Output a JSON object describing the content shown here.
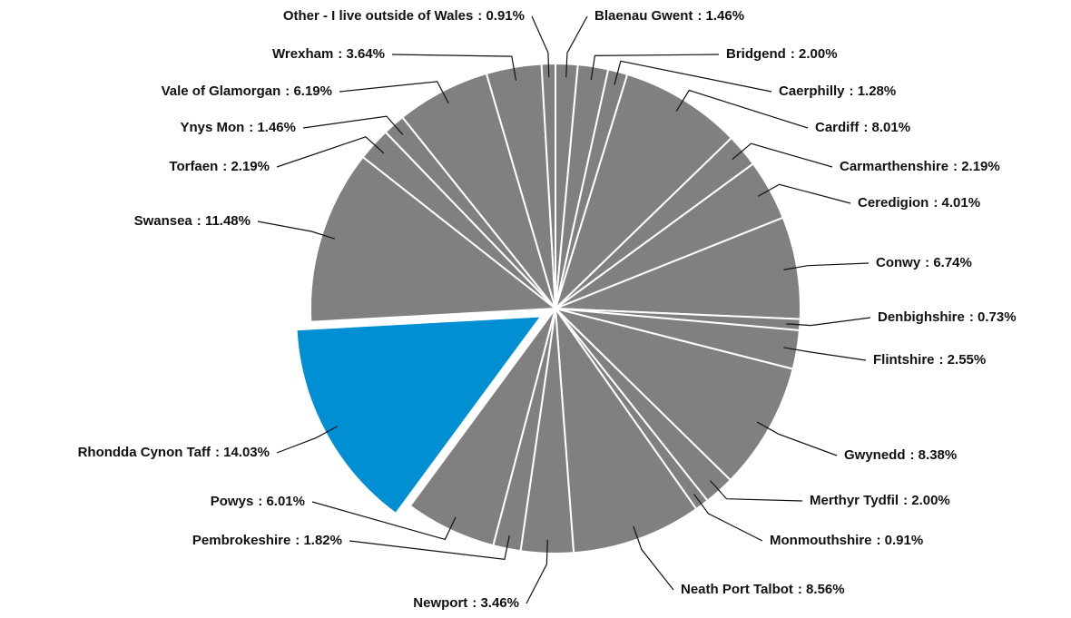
{
  "chart_data": {
    "type": "pie",
    "categories": [
      "Blaenau Gwent",
      "Bridgend",
      "Caerphilly",
      "Cardiff",
      "Carmarthenshire",
      "Ceredigion",
      "Conwy",
      "Denbighshire",
      "Flintshire",
      "Gwynedd",
      "Merthyr Tydfil",
      "Monmouthshire",
      "Neath Port Talbot",
      "Newport",
      "Pembrokeshire",
      "Powys",
      "Rhondda Cynon Taff",
      "Swansea",
      "Torfaen",
      "Ynys Mon",
      "Vale of Glamorgan",
      "Wrexham",
      "Other - I live outside of Wales"
    ],
    "values": [
      1.46,
      2.0,
      1.28,
      8.01,
      2.19,
      4.01,
      6.74,
      0.73,
      2.55,
      8.38,
      2.0,
      0.91,
      8.56,
      3.46,
      1.82,
      6.01,
      14.03,
      11.48,
      2.19,
      1.46,
      6.19,
      3.64,
      0.91
    ],
    "value_labels": [
      ": 1.46%",
      ": 2.00%",
      ": 1.28%",
      ": 8.01%",
      ": 2.19%",
      ": 4.01%",
      ": 6.74%",
      ": 0.73%",
      ": 2.55%",
      ": 8.38%",
      ": 2.00%",
      ": 0.91%",
      ": 8.56%",
      ": 3.46%",
      ": 1.82%",
      ": 6.01%",
      ": 14.03%",
      ": 11.48%",
      ": 2.19%",
      ": 1.46%",
      ": 6.19%",
      ": 3.64%",
      ": 0.91%"
    ],
    "colors": [
      "#808080",
      "#808080",
      "#808080",
      "#808080",
      "#808080",
      "#808080",
      "#808080",
      "#808080",
      "#808080",
      "#808080",
      "#808080",
      "#808080",
      "#808080",
      "#808080",
      "#808080",
      "#808080",
      "#008fd3",
      "#808080",
      "#808080",
      "#808080",
      "#808080",
      "#808080",
      "#808080"
    ],
    "exploded": [
      16
    ]
  }
}
